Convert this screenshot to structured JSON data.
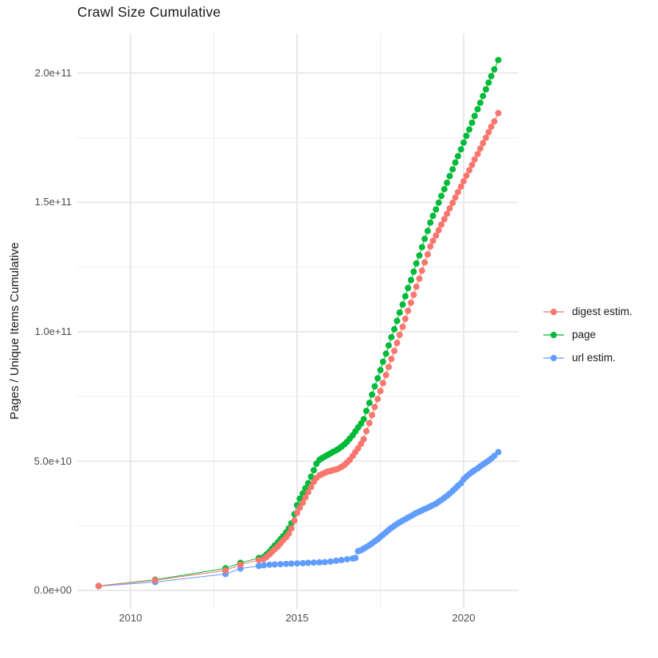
{
  "chart_data": {
    "type": "scatter",
    "title": "Crawl Size Cumulative",
    "xlabel": "",
    "ylabel": "Pages / Unique Items Cumulative",
    "value_unit": "1e9",
    "xlim": [
      2008.4,
      2021.65
    ],
    "ylim": [
      -7,
      215.3
    ],
    "x_ticks": [
      {
        "label": "2010",
        "value": 2010
      },
      {
        "label": "2015",
        "value": 2015
      },
      {
        "label": "2020",
        "value": 2020
      }
    ],
    "x_minor_ticks": [
      2012.5,
      2017.5
    ],
    "y_ticks": [
      {
        "label": "0.0e+00",
        "value": 0
      },
      {
        "label": "5.0e+10",
        "value": 50
      },
      {
        "label": "1.0e+11",
        "value": 100
      },
      {
        "label": "1.5e+11",
        "value": 150
      },
      {
        "label": "2.0e+11",
        "value": 200
      }
    ],
    "y_minor_ticks": [
      25,
      75,
      125,
      175
    ],
    "grid": true,
    "legend_position": "right",
    "series": [
      {
        "name": "digest estim.",
        "color": "#F8766D",
        "points": [
          [
            2009.04,
            1.8
          ],
          [
            2010.74,
            4
          ],
          [
            2012.85,
            7.8
          ],
          [
            2013.3,
            10
          ],
          [
            2013.85,
            11.8
          ],
          [
            2014.0,
            12.2
          ],
          [
            2014.08,
            13
          ],
          [
            2014.17,
            14
          ],
          [
            2014.25,
            15
          ],
          [
            2014.33,
            16
          ],
          [
            2014.42,
            17
          ],
          [
            2014.5,
            18.2
          ],
          [
            2014.58,
            19.4
          ],
          [
            2014.67,
            20.6
          ],
          [
            2014.75,
            22
          ],
          [
            2014.83,
            24
          ],
          [
            2014.92,
            27
          ],
          [
            2015.0,
            30
          ],
          [
            2015.08,
            32
          ],
          [
            2015.17,
            34
          ],
          [
            2015.25,
            36
          ],
          [
            2015.33,
            38
          ],
          [
            2015.42,
            40
          ],
          [
            2015.5,
            42
          ],
          [
            2015.58,
            43.5
          ],
          [
            2015.67,
            44.5
          ],
          [
            2015.75,
            45
          ],
          [
            2015.83,
            45.5
          ],
          [
            2015.92,
            46
          ],
          [
            2016.0,
            46.2
          ],
          [
            2016.08,
            46.5
          ],
          [
            2016.17,
            46.8
          ],
          [
            2016.25,
            47.2
          ],
          [
            2016.33,
            47.8
          ],
          [
            2016.42,
            48.5
          ],
          [
            2016.5,
            49.5
          ],
          [
            2016.58,
            50.5
          ],
          [
            2016.67,
            52
          ],
          [
            2016.75,
            53.5
          ],
          [
            2016.83,
            55
          ],
          [
            2016.92,
            56.7
          ],
          [
            2017.0,
            58.5
          ],
          [
            2017.08,
            61.6
          ],
          [
            2017.17,
            64.7
          ],
          [
            2017.25,
            67.8
          ],
          [
            2017.33,
            70.9
          ],
          [
            2017.42,
            74
          ],
          [
            2017.5,
            77.1
          ],
          [
            2017.58,
            80.2
          ],
          [
            2017.67,
            83.3
          ],
          [
            2017.75,
            86.4
          ],
          [
            2017.83,
            89.5
          ],
          [
            2017.92,
            92.6
          ],
          [
            2018.0,
            95.7
          ],
          [
            2018.08,
            98.8
          ],
          [
            2018.17,
            101.9
          ],
          [
            2018.25,
            105
          ],
          [
            2018.33,
            108.1
          ],
          [
            2018.42,
            111.2
          ],
          [
            2018.5,
            114.3
          ],
          [
            2018.58,
            117.4
          ],
          [
            2018.67,
            120.5
          ],
          [
            2018.75,
            123.6
          ],
          [
            2018.83,
            126.8
          ],
          [
            2018.92,
            129.9
          ],
          [
            2019.0,
            133
          ],
          [
            2019.08,
            135.1
          ],
          [
            2019.17,
            137.2
          ],
          [
            2019.25,
            139.3
          ],
          [
            2019.33,
            141.4
          ],
          [
            2019.42,
            143.5
          ],
          [
            2019.5,
            145.6
          ],
          [
            2019.58,
            147.7
          ],
          [
            2019.67,
            149.8
          ],
          [
            2019.75,
            151.9
          ],
          [
            2019.83,
            154
          ],
          [
            2019.92,
            156.1
          ],
          [
            2020.0,
            158.2
          ],
          [
            2020.08,
            160.3
          ],
          [
            2020.17,
            162.4
          ],
          [
            2020.25,
            164.5
          ],
          [
            2020.33,
            166.6
          ],
          [
            2020.42,
            168.7
          ],
          [
            2020.5,
            170.8
          ],
          [
            2020.58,
            172.9
          ],
          [
            2020.67,
            175
          ],
          [
            2020.75,
            177.1
          ],
          [
            2020.83,
            179.2
          ],
          [
            2020.92,
            181.3
          ],
          [
            2021.04,
            184.5
          ]
        ]
      },
      {
        "name": "page",
        "color": "#00BA38",
        "points": [
          [
            2009.04,
            1.8
          ],
          [
            2010.74,
            4.2
          ],
          [
            2012.85,
            8.6
          ],
          [
            2013.3,
            10.7
          ],
          [
            2013.85,
            12.6
          ],
          [
            2014.0,
            13
          ],
          [
            2014.08,
            14
          ],
          [
            2014.17,
            15
          ],
          [
            2014.25,
            16.2
          ],
          [
            2014.33,
            17.4
          ],
          [
            2014.42,
            18.6
          ],
          [
            2014.5,
            19.8
          ],
          [
            2014.58,
            21
          ],
          [
            2014.67,
            22.5
          ],
          [
            2014.75,
            24
          ],
          [
            2014.83,
            26
          ],
          [
            2014.92,
            29.5
          ],
          [
            2015.0,
            33
          ],
          [
            2015.08,
            35.5
          ],
          [
            2015.17,
            37.5
          ],
          [
            2015.25,
            39.5
          ],
          [
            2015.33,
            41.5
          ],
          [
            2015.42,
            44
          ],
          [
            2015.5,
            46.5
          ],
          [
            2015.58,
            49
          ],
          [
            2015.67,
            50.5
          ],
          [
            2015.75,
            51.2
          ],
          [
            2015.83,
            51.8
          ],
          [
            2015.92,
            52.4
          ],
          [
            2016.0,
            53
          ],
          [
            2016.08,
            53.6
          ],
          [
            2016.17,
            54.2
          ],
          [
            2016.25,
            54.8
          ],
          [
            2016.33,
            55.6
          ],
          [
            2016.42,
            56.5
          ],
          [
            2016.5,
            57.5
          ],
          [
            2016.58,
            58.7
          ],
          [
            2016.67,
            60
          ],
          [
            2016.75,
            61.5
          ],
          [
            2016.83,
            63
          ],
          [
            2016.92,
            64.5
          ],
          [
            2017.0,
            66.2
          ],
          [
            2017.08,
            69.4
          ],
          [
            2017.17,
            72.5
          ],
          [
            2017.25,
            75.7
          ],
          [
            2017.33,
            78.9
          ],
          [
            2017.42,
            82
          ],
          [
            2017.5,
            85.2
          ],
          [
            2017.58,
            88.4
          ],
          [
            2017.67,
            91.5
          ],
          [
            2017.75,
            94.7
          ],
          [
            2017.83,
            97.9
          ],
          [
            2017.92,
            101
          ],
          [
            2018.0,
            104.2
          ],
          [
            2018.08,
            107.4
          ],
          [
            2018.17,
            110.5
          ],
          [
            2018.25,
            113.7
          ],
          [
            2018.33,
            116.9
          ],
          [
            2018.42,
            120
          ],
          [
            2018.5,
            123.2
          ],
          [
            2018.58,
            126.4
          ],
          [
            2018.67,
            129.5
          ],
          [
            2018.75,
            132.7
          ],
          [
            2018.83,
            135.9
          ],
          [
            2018.92,
            139
          ],
          [
            2019.0,
            142.2
          ],
          [
            2019.08,
            144.8
          ],
          [
            2019.17,
            147.3
          ],
          [
            2019.25,
            149.9
          ],
          [
            2019.33,
            152.5
          ],
          [
            2019.42,
            155.1
          ],
          [
            2019.5,
            157.6
          ],
          [
            2019.58,
            160.2
          ],
          [
            2019.67,
            162.8
          ],
          [
            2019.75,
            165.4
          ],
          [
            2019.83,
            167.9
          ],
          [
            2019.92,
            170.5
          ],
          [
            2020.0,
            173.1
          ],
          [
            2020.08,
            175.7
          ],
          [
            2020.17,
            178.2
          ],
          [
            2020.25,
            180.8
          ],
          [
            2020.33,
            183.4
          ],
          [
            2020.42,
            186
          ],
          [
            2020.5,
            188.5
          ],
          [
            2020.58,
            191.1
          ],
          [
            2020.67,
            193.7
          ],
          [
            2020.75,
            196.3
          ],
          [
            2020.83,
            198.8
          ],
          [
            2020.92,
            201.4
          ],
          [
            2021.04,
            205
          ]
        ]
      },
      {
        "name": "url estim.",
        "color": "#619CFF",
        "points": [
          [
            2009.04,
            1.7
          ],
          [
            2010.74,
            3.3
          ],
          [
            2012.85,
            6.4
          ],
          [
            2013.3,
            8.5
          ],
          [
            2013.85,
            9.5
          ],
          [
            2014.0,
            9.8
          ],
          [
            2014.17,
            10
          ],
          [
            2014.33,
            10.1
          ],
          [
            2014.5,
            10.2
          ],
          [
            2014.67,
            10.3
          ],
          [
            2014.83,
            10.4
          ],
          [
            2015.0,
            10.5
          ],
          [
            2015.17,
            10.6
          ],
          [
            2015.33,
            10.7
          ],
          [
            2015.5,
            10.8
          ],
          [
            2015.67,
            10.9
          ],
          [
            2015.83,
            11
          ],
          [
            2016.0,
            11.2
          ],
          [
            2016.17,
            11.5
          ],
          [
            2016.33,
            11.8
          ],
          [
            2016.5,
            12.1
          ],
          [
            2016.67,
            12.4
          ],
          [
            2016.75,
            12.6
          ],
          [
            2016.83,
            15.2
          ],
          [
            2016.92,
            15.6
          ],
          [
            2017.0,
            16.2
          ],
          [
            2017.08,
            16.8
          ],
          [
            2017.17,
            17.5
          ],
          [
            2017.25,
            18.2
          ],
          [
            2017.33,
            19
          ],
          [
            2017.42,
            19.8
          ],
          [
            2017.5,
            20.7
          ],
          [
            2017.58,
            21.6
          ],
          [
            2017.67,
            22.5
          ],
          [
            2017.75,
            23.4
          ],
          [
            2017.83,
            24.2
          ],
          [
            2017.92,
            25
          ],
          [
            2018.0,
            25.7
          ],
          [
            2018.08,
            26.4
          ],
          [
            2018.17,
            27
          ],
          [
            2018.25,
            27.6
          ],
          [
            2018.33,
            28.2
          ],
          [
            2018.42,
            28.8
          ],
          [
            2018.5,
            29.4
          ],
          [
            2018.58,
            30
          ],
          [
            2018.67,
            30.5
          ],
          [
            2018.75,
            31
          ],
          [
            2018.83,
            31.5
          ],
          [
            2018.92,
            32
          ],
          [
            2019.0,
            32.5
          ],
          [
            2019.08,
            33
          ],
          [
            2019.17,
            33.6
          ],
          [
            2019.25,
            34.3
          ],
          [
            2019.33,
            35
          ],
          [
            2019.42,
            35.8
          ],
          [
            2019.5,
            36.6
          ],
          [
            2019.58,
            37.5
          ],
          [
            2019.67,
            38.5
          ],
          [
            2019.75,
            39.5
          ],
          [
            2019.83,
            40.5
          ],
          [
            2019.92,
            41.5
          ],
          [
            2020.0,
            43
          ],
          [
            2020.08,
            44
          ],
          [
            2020.17,
            45
          ],
          [
            2020.25,
            45.8
          ],
          [
            2020.33,
            46.5
          ],
          [
            2020.42,
            47.2
          ],
          [
            2020.5,
            48
          ],
          [
            2020.58,
            48.7
          ],
          [
            2020.67,
            49.5
          ],
          [
            2020.75,
            50.2
          ],
          [
            2020.83,
            51
          ],
          [
            2020.92,
            52
          ],
          [
            2021.04,
            53.5
          ]
        ]
      }
    ]
  }
}
